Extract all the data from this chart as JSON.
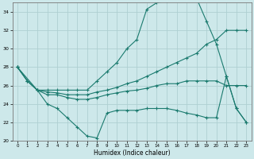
{
  "background_color": "#cde8ea",
  "grid_color": "#aed0d2",
  "line_color": "#1a7a6e",
  "xlim": [
    -0.5,
    23.5
  ],
  "ylim": [
    20,
    35
  ],
  "xlabel": "Humidex (Indice chaleur)",
  "yticks": [
    20,
    22,
    24,
    26,
    28,
    30,
    32,
    34
  ],
  "xticks": [
    0,
    1,
    2,
    3,
    4,
    5,
    6,
    7,
    8,
    9,
    10,
    11,
    12,
    13,
    14,
    15,
    16,
    17,
    18,
    19,
    20,
    21,
    22,
    23
  ],
  "line1_x": [
    0,
    1,
    2,
    3,
    4,
    5,
    6,
    7,
    8,
    9,
    10,
    11,
    12,
    13,
    14,
    15,
    16,
    17,
    18,
    19,
    20,
    21,
    22,
    23
  ],
  "line1_y": [
    28,
    26.5,
    25.5,
    25.5,
    25.5,
    25.5,
    25.5,
    25.5,
    26.5,
    27.5,
    28.5,
    30.0,
    31.0,
    34.3,
    35.0,
    35.2,
    35.3,
    35.5,
    35.5,
    33.0,
    30.5,
    27.0,
    23.5,
    22.0
  ],
  "line2_x": [
    0,
    1,
    2,
    3,
    4,
    5,
    6,
    7,
    8,
    9,
    10,
    11,
    12,
    13,
    14,
    15,
    16,
    17,
    18,
    19,
    20,
    21,
    22,
    23
  ],
  "line2_y": [
    28,
    26.5,
    25.5,
    25.3,
    25.2,
    25.0,
    25.0,
    25.0,
    25.3,
    25.5,
    25.8,
    26.2,
    26.5,
    27.0,
    27.5,
    28.0,
    28.5,
    29.0,
    29.5,
    30.5,
    31.0,
    32.0,
    32.0,
    32.0
  ],
  "line3_x": [
    0,
    1,
    2,
    3,
    4,
    5,
    6,
    7,
    8,
    9,
    10,
    11,
    12,
    13,
    14,
    15,
    16,
    17,
    18,
    19,
    20,
    21,
    22,
    23
  ],
  "line3_y": [
    28,
    26.5,
    25.5,
    25.0,
    25.0,
    24.7,
    24.5,
    24.5,
    24.7,
    25.0,
    25.2,
    25.4,
    25.5,
    25.7,
    26.0,
    26.2,
    26.2,
    26.5,
    26.5,
    26.5,
    26.5,
    26.0,
    26.0,
    26.0
  ],
  "line4_x": [
    0,
    2,
    3,
    4,
    5,
    6,
    7,
    8,
    9,
    10,
    11,
    12,
    13,
    14,
    15,
    16,
    17,
    18,
    19,
    20,
    21,
    22,
    23
  ],
  "line4_y": [
    28,
    25.5,
    24.0,
    23.5,
    22.5,
    21.5,
    20.5,
    20.3,
    23.0,
    23.3,
    23.3,
    23.3,
    23.5,
    23.5,
    23.5,
    23.3,
    23.0,
    22.8,
    22.5,
    22.5,
    27.0,
    23.5,
    22.0
  ]
}
